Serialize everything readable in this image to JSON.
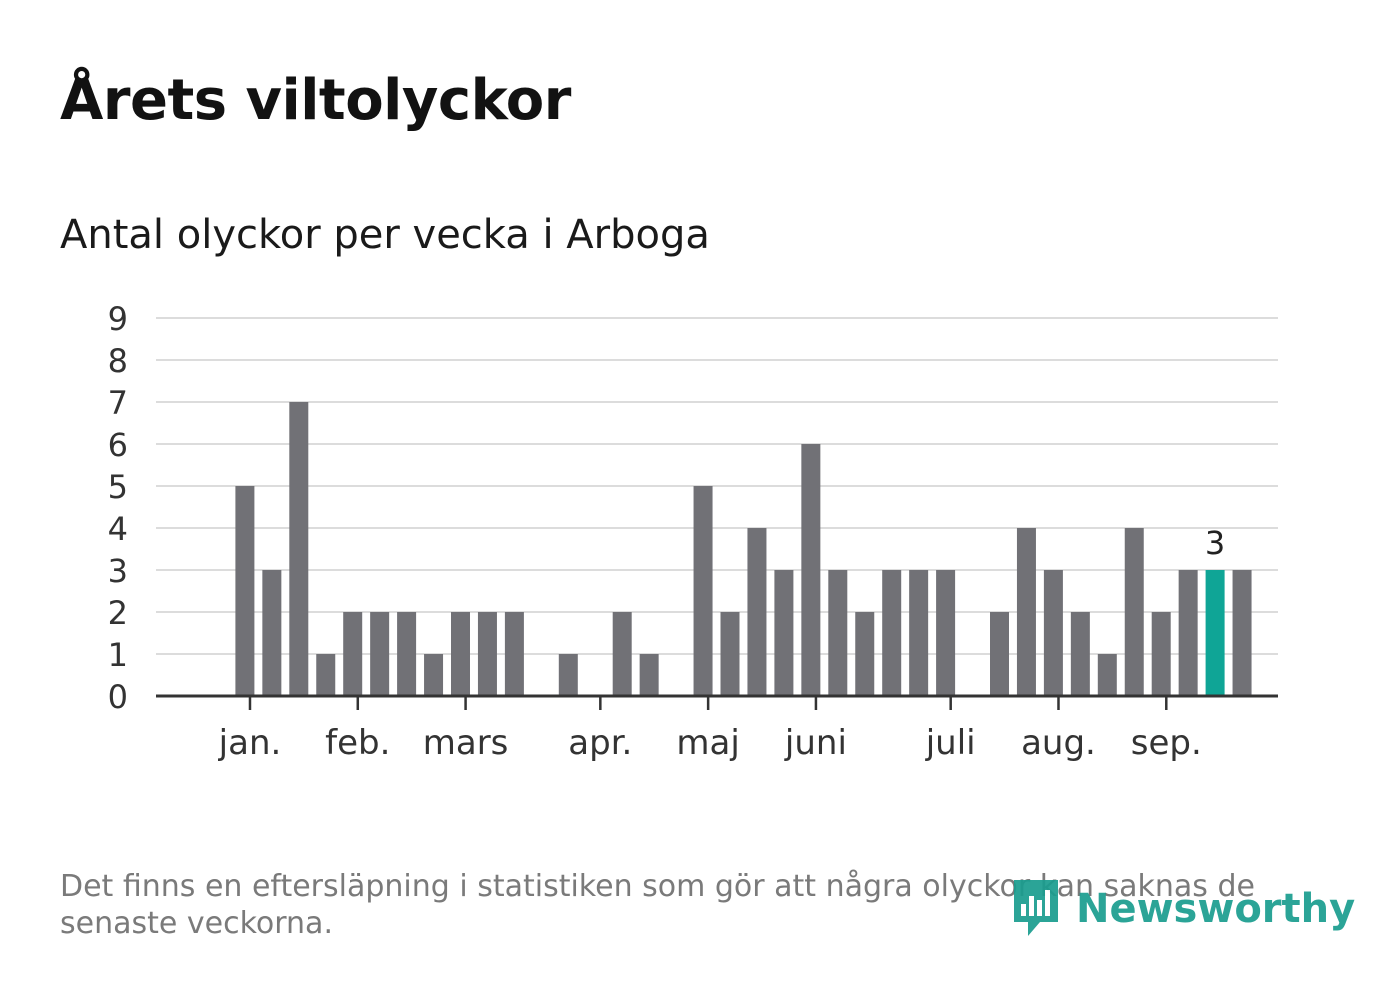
{
  "header": {
    "title": "Årets viltolyckor",
    "subtitle": "Antal olyckor per vecka i Arboga"
  },
  "footnote": "Det finns en eftersläpning i statistiken som gör att några olyckor kan saknas de senaste veckorna.",
  "logo": {
    "text": "Newsworthy",
    "icon": "newsworthy-logo-icon"
  },
  "colors": {
    "bar": "#717176",
    "highlight": "#0fa596",
    "grid": "#dcdcdc",
    "axis": "#333333"
  },
  "chart_data": {
    "type": "bar",
    "title": "Antal olyckor per vecka i Arboga",
    "xlabel": "",
    "ylabel": "",
    "ylim": [
      0,
      9
    ],
    "yticks": [
      0,
      1,
      2,
      3,
      4,
      5,
      6,
      7,
      8,
      9
    ],
    "grid": true,
    "weeks": [
      1,
      2,
      3,
      4,
      5,
      6,
      7,
      8,
      9,
      10,
      11,
      12,
      13,
      14,
      15,
      16,
      17,
      18,
      19,
      20,
      21,
      22,
      23,
      24,
      25,
      26,
      27,
      28,
      29,
      30,
      31,
      32,
      33,
      34,
      35,
      36,
      37,
      38,
      39,
      40,
      41
    ],
    "values": [
      0,
      0,
      5,
      3,
      7,
      1,
      2,
      2,
      2,
      1,
      2,
      2,
      2,
      0,
      1,
      0,
      2,
      1,
      0,
      5,
      2,
      4,
      3,
      6,
      3,
      2,
      3,
      3,
      3,
      0,
      2,
      4,
      3,
      2,
      1,
      4,
      2,
      3,
      3,
      3,
      0
    ],
    "highlight_week": 39,
    "highlight_label": "3",
    "month_ticks": [
      {
        "label": "jan.",
        "week": 3.3
      },
      {
        "label": "feb.",
        "week": 7.3
      },
      {
        "label": "mars",
        "week": 11.3
      },
      {
        "label": "apr.",
        "week": 16.3
      },
      {
        "label": "maj",
        "week": 20.3
      },
      {
        "label": "juni",
        "week": 24.3
      },
      {
        "label": "juli",
        "week": 29.3
      },
      {
        "label": "aug.",
        "week": 33.3
      },
      {
        "label": "sep.",
        "week": 37.3
      }
    ]
  }
}
